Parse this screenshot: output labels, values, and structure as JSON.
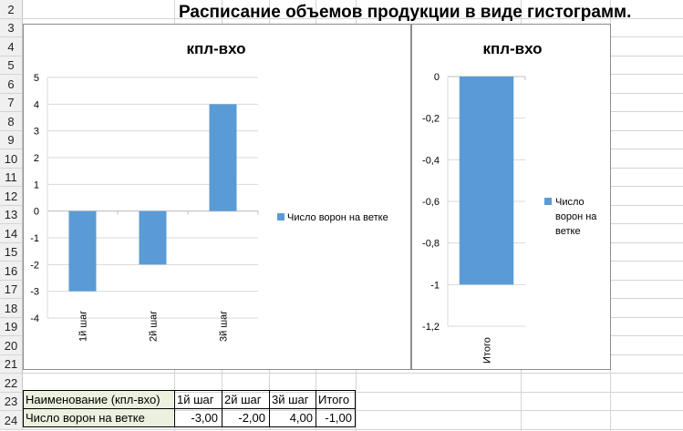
{
  "sheet": {
    "title": "Расписание объемов продукции в виде гистограмм.",
    "row_numbers": [
      "2",
      "3",
      "4",
      "5",
      "6",
      "7",
      "8",
      "9",
      "10",
      "11",
      "12",
      "13",
      "14",
      "15",
      "16",
      "17",
      "18",
      "19",
      "20",
      "21",
      "22",
      "23",
      "24"
    ]
  },
  "table": {
    "header": [
      "Наименование (кпл-вхо)",
      "1й  шаг",
      "2й  шаг",
      "3й  шаг",
      "Итого"
    ],
    "row": [
      "Число ворон на ветке",
      "-3,00",
      "-2,00",
      "4,00",
      "-1,00"
    ]
  },
  "chart_data": [
    {
      "type": "bar",
      "title": "кпл-вхо",
      "categories": [
        "1й  шаг",
        "2й  шаг",
        "3й  шаг"
      ],
      "series": [
        {
          "name": "Число ворон на ветке",
          "values": [
            -3,
            -2,
            4
          ]
        }
      ],
      "ylim": [
        -4,
        5
      ],
      "yticks": [
        "5",
        "4",
        "3",
        "2",
        "1",
        "0",
        "-1",
        "-2",
        "-3",
        "-4"
      ],
      "grid": true,
      "legend": "right",
      "color": "#5b9bd5"
    },
    {
      "type": "bar",
      "title": "кпл-вхо",
      "categories": [
        "Итого"
      ],
      "series": [
        {
          "name": "Число ворон на ветке",
          "values": [
            -1
          ]
        }
      ],
      "ylim": [
        -1.2,
        0
      ],
      "yticks": [
        "0",
        "-0,2",
        "-0,4",
        "-0,6",
        "-0,8",
        "-1",
        "-1,2"
      ],
      "grid": true,
      "legend": "right",
      "legend_lines": [
        "Число",
        "ворон на",
        "ветке"
      ],
      "color": "#5b9bd5"
    }
  ]
}
